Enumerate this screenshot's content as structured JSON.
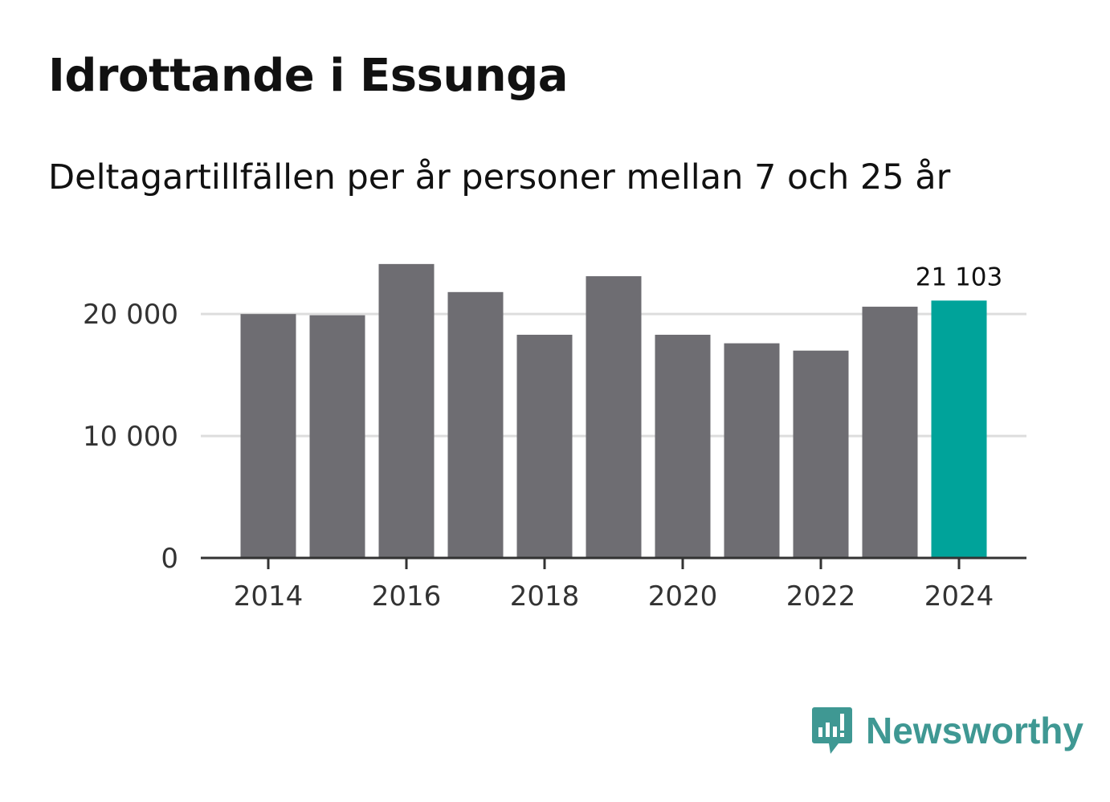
{
  "title": "Idrottande i Essunga",
  "subtitle": "Deltagartillfällen per år personer mellan 7 och 25 år",
  "brand": {
    "name": "Newsworthy",
    "icon": "newsworthy-bar-chart-icon",
    "color": "#3f9893"
  },
  "colors": {
    "bar": "#6e6d72",
    "highlight": "#00a39a",
    "grid": "#dddddd",
    "axis": "#333333"
  },
  "chart_data": {
    "type": "bar",
    "title": "Idrottande i Essunga",
    "subtitle": "Deltagartillfällen per år personer mellan 7 och 25 år",
    "xlabel": "",
    "ylabel": "",
    "categories": [
      "2014",
      "2015",
      "2016",
      "2017",
      "2018",
      "2019",
      "2020",
      "2021",
      "2022",
      "2023",
      "2024"
    ],
    "values": [
      20000,
      19900,
      24100,
      21800,
      18300,
      23100,
      18300,
      17600,
      17000,
      20600,
      21103
    ],
    "highlight_index": 10,
    "highlight_label": "21 103",
    "ylim": [
      0,
      26000
    ],
    "yticks": [
      0,
      10000,
      20000
    ],
    "ytick_labels": [
      "0",
      "10 000",
      "20 000"
    ],
    "xticks": [
      "2014",
      "2016",
      "2018",
      "2020",
      "2022",
      "2024"
    ],
    "grid": true,
    "legend": "none"
  }
}
